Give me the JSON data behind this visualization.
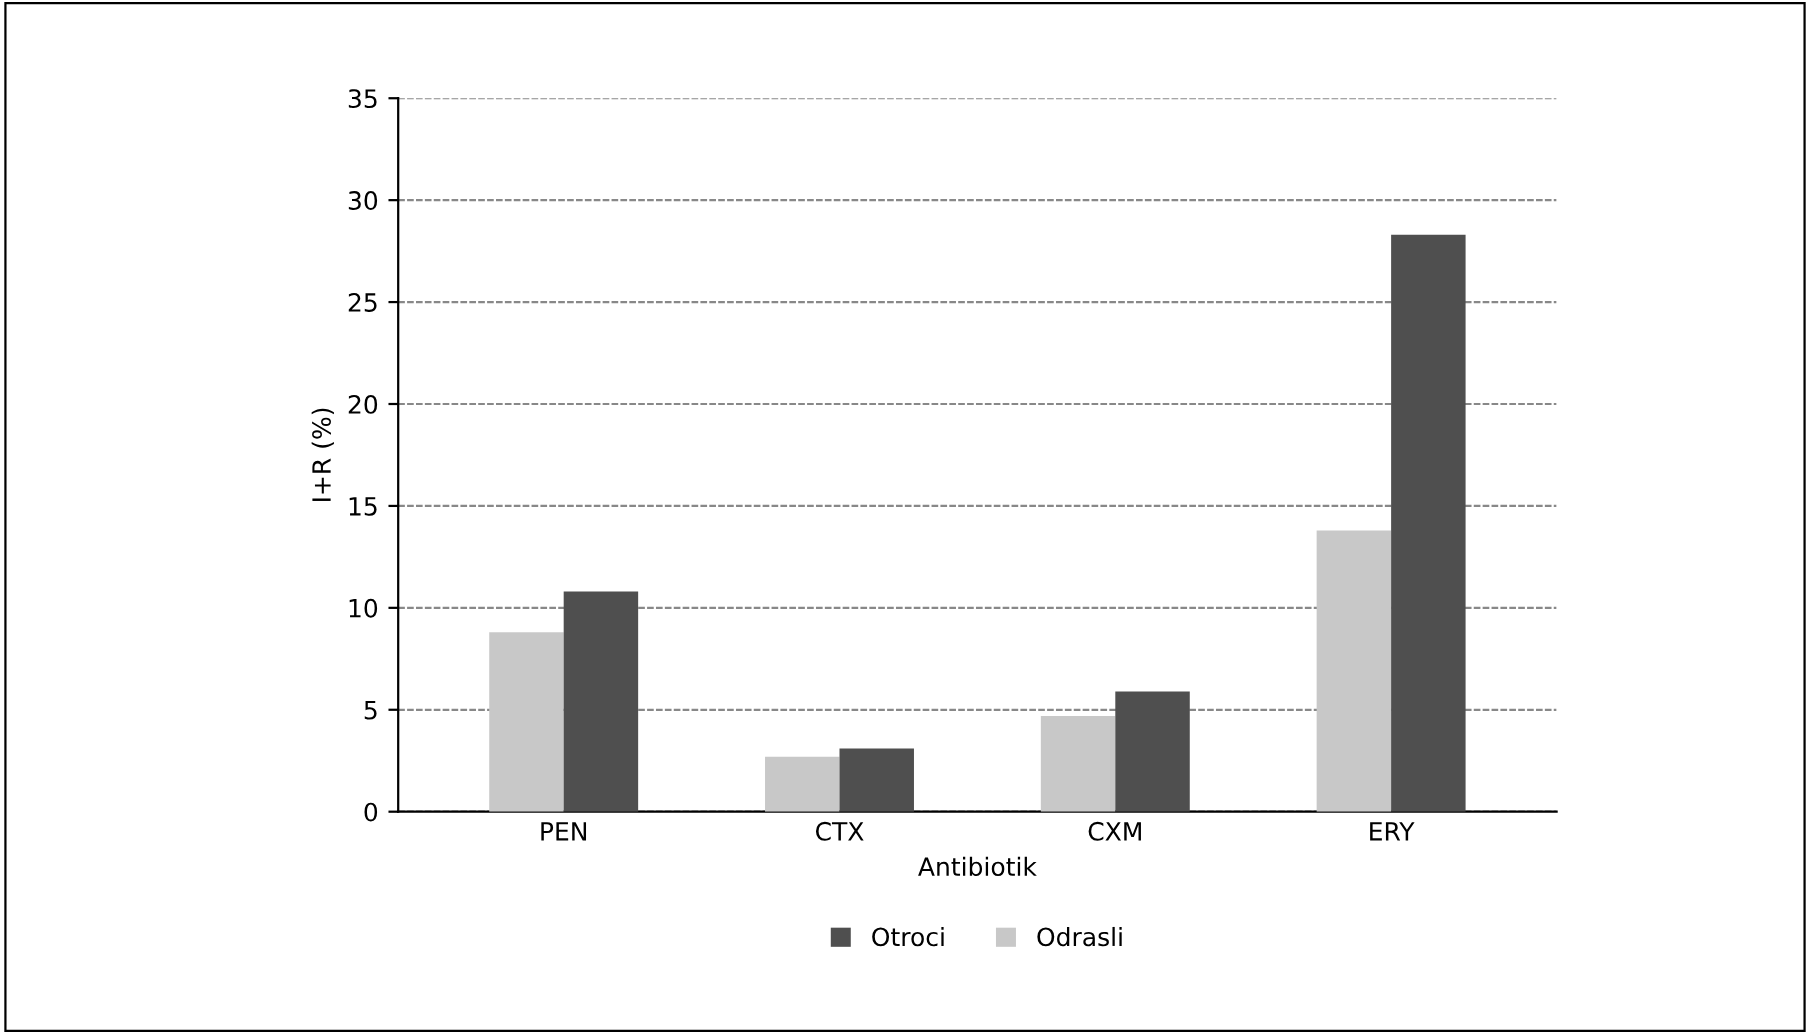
{
  "chart_data": {
    "type": "bar",
    "xlabel": "Antibiotik",
    "ylabel": "I+R (%)",
    "categories": [
      "PEN",
      "CTX",
      "CXM",
      "ERY"
    ],
    "series": [
      {
        "name": "Odrasli",
        "color": "#c8c8c8",
        "values": [
          8.8,
          2.7,
          4.7,
          13.8
        ]
      },
      {
        "name": "Otroci",
        "color": "#4f4f4f",
        "values": [
          10.8,
          3.1,
          5.9,
          28.3
        ]
      }
    ],
    "ylim": [
      0,
      35
    ],
    "yticks": [
      0,
      5,
      10,
      15,
      20,
      25,
      30,
      35
    ],
    "grid": "y",
    "legend": "bottom"
  }
}
